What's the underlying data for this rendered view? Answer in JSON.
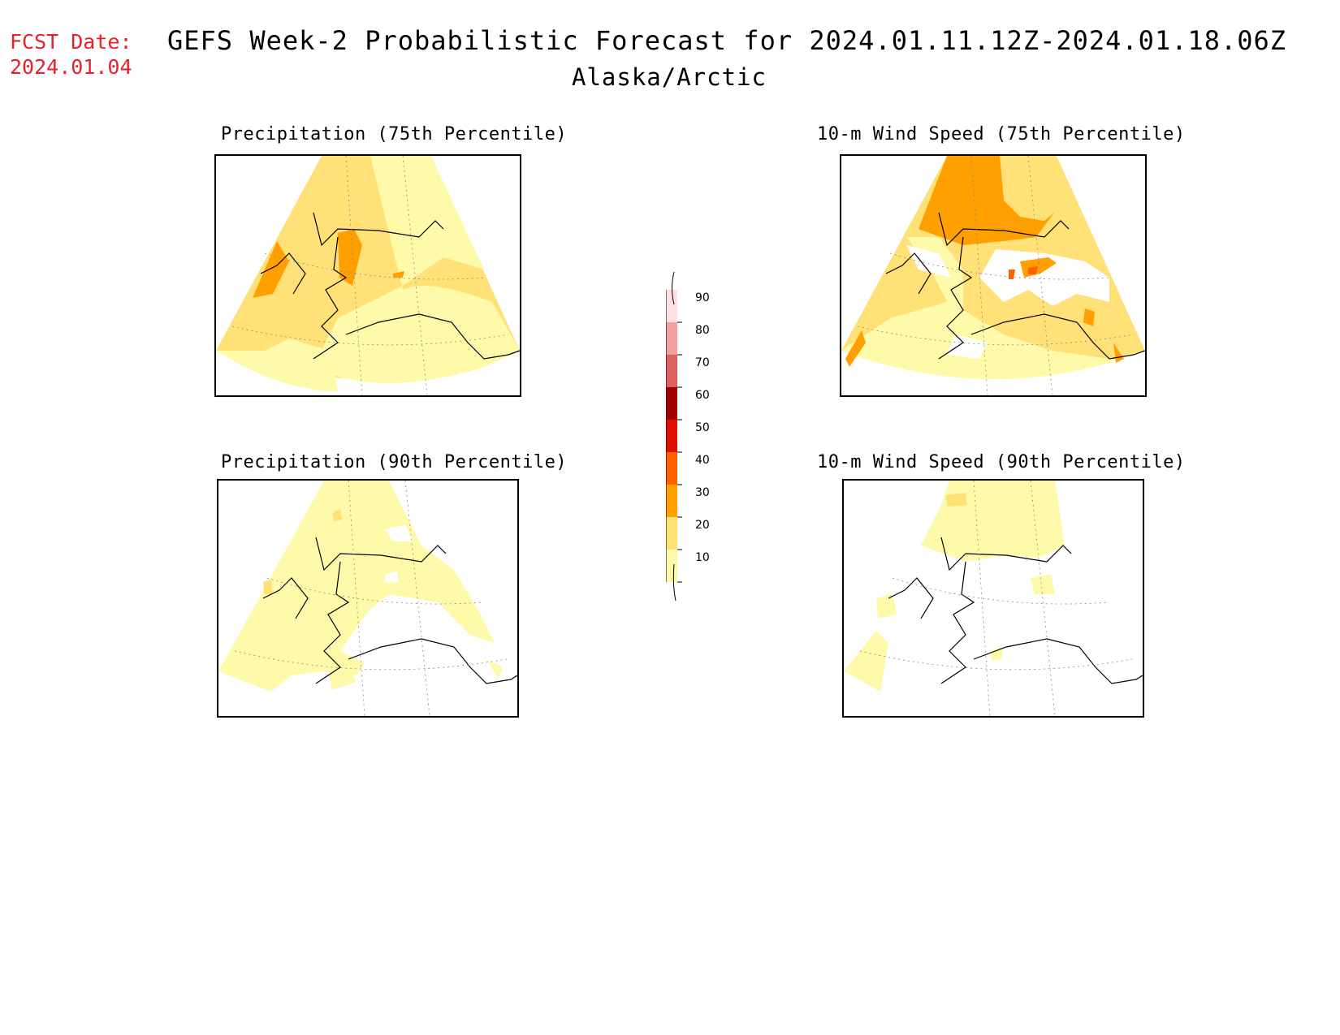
{
  "header": {
    "fcst_label": "FCST Date:",
    "fcst_date": "2024.01.04",
    "title": "GEFS Week-2 Probabilistic Forecast for 2024.01.11.12Z-2024.01.18.06Z",
    "subtitle": "Alaska/Arctic"
  },
  "panels": [
    {
      "id": "precip-75",
      "title": "Precipitation (75th Percentile)"
    },
    {
      "id": "wind-75",
      "title": "10-m Wind Speed (75th Percentile)"
    },
    {
      "id": "precip-90",
      "title": "Precipitation (90th Percentile)"
    },
    {
      "id": "wind-90",
      "title": "10-m Wind Speed (90th Percentile)"
    }
  ],
  "legend": {
    "levels": [
      "10",
      "20",
      "30",
      "40",
      "50",
      "60",
      "70",
      "80",
      "90"
    ],
    "colors": {
      "lt10": "#ffffff",
      "10_20": "#fffaaa",
      "20_30": "#ffe178",
      "30_40": "#ffa000",
      "40_50": "#ff6000",
      "50_60": "#e01000",
      "60_70": "#a00000",
      "70_80": "#e06060",
      "80_90": "#f0a0a0",
      "gt90": "#ffe0e0"
    }
  }
}
